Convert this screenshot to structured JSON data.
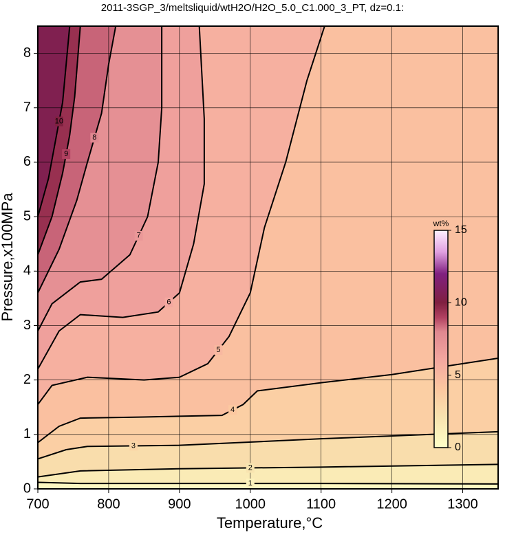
{
  "chart_data": {
    "type": "contour",
    "title": "2011-3SGP_3/meltsliquid/wtH2O/H2O_5.0_C1.000_3_PT, dz=0.1:",
    "x_label": "Temperature,°C",
    "y_label": "Pressure,x100MPa",
    "xlim": [
      700,
      1350
    ],
    "ylim": [
      0,
      8.5
    ],
    "xticks": [
      700,
      800,
      900,
      1000,
      1100,
      1200,
      1300
    ],
    "yticks": [
      0,
      1,
      2,
      3,
      4,
      5,
      6,
      7,
      8
    ],
    "grid": true,
    "colorbar": {
      "label": "wt%",
      "lim": [
        0,
        15
      ],
      "ticks": [
        0,
        5,
        10,
        15
      ],
      "colormap": [
        [
          0,
          "#ffffc8"
        ],
        [
          2,
          "#f8e4b0"
        ],
        [
          4,
          "#fcc8a0"
        ],
        [
          6,
          "#f4a8a0"
        ],
        [
          8,
          "#e08890"
        ],
        [
          9,
          "#b04060"
        ],
        [
          10,
          "#802040"
        ],
        [
          12,
          "#802080"
        ],
        [
          13.5,
          "#e0a0e0"
        ],
        [
          15,
          "#fff0ff"
        ]
      ]
    },
    "contours": [
      {
        "level": 1,
        "x": [
          700,
          760,
          900,
          1100,
          1350
        ],
        "y": [
          0.12,
          0.1,
          0.1,
          0.1,
          0.09
        ]
      },
      {
        "level": 2,
        "x": [
          700,
          760,
          900,
          1100,
          1350
        ],
        "y": [
          0.22,
          0.33,
          0.37,
          0.4,
          0.45
        ]
      },
      {
        "level": 3,
        "x": [
          700,
          740,
          770,
          900,
          1100,
          1350
        ],
        "y": [
          0.55,
          0.72,
          0.78,
          0.8,
          0.92,
          1.05
        ]
      },
      {
        "level": 4,
        "x": [
          700,
          730,
          760,
          850,
          960,
          990,
          1010,
          1100,
          1200,
          1350
        ],
        "y": [
          0.85,
          1.15,
          1.3,
          1.32,
          1.35,
          1.55,
          1.8,
          1.95,
          2.1,
          2.4
        ]
      },
      {
        "level": 5,
        "x": [
          700,
          720,
          770,
          850,
          900,
          940,
          970,
          1000,
          1020,
          1050,
          1080,
          1105
        ],
        "y": [
          1.55,
          1.9,
          2.05,
          2.0,
          2.05,
          2.3,
          2.8,
          3.6,
          4.8,
          6.0,
          7.5,
          8.5
        ]
      },
      {
        "level": 6,
        "x": [
          700,
          730,
          760,
          820,
          870,
          900,
          920,
          935,
          935,
          928
        ],
        "y": [
          2.2,
          2.9,
          3.2,
          3.15,
          3.25,
          3.6,
          4.5,
          5.6,
          6.8,
          8.5
        ]
      },
      {
        "level": 7,
        "x": [
          700,
          720,
          760,
          790,
          830,
          855,
          870,
          875,
          875
        ],
        "y": [
          2.9,
          3.4,
          3.8,
          3.85,
          4.3,
          5.0,
          6.0,
          7.0,
          8.5
        ]
      },
      {
        "level": 8,
        "x": [
          700,
          730,
          755,
          770,
          790,
          800,
          810
        ],
        "y": [
          3.6,
          4.4,
          5.3,
          6.0,
          6.9,
          7.8,
          8.5
        ]
      },
      {
        "level": 9,
        "x": [
          700,
          720,
          735,
          745,
          752,
          760
        ],
        "y": [
          4.3,
          5.0,
          5.8,
          6.5,
          7.2,
          8.5
        ]
      },
      {
        "level": 10,
        "x": [
          700,
          715,
          725,
          735,
          745
        ],
        "y": [
          5.0,
          5.7,
          6.4,
          7.1,
          8.5
        ]
      }
    ]
  }
}
